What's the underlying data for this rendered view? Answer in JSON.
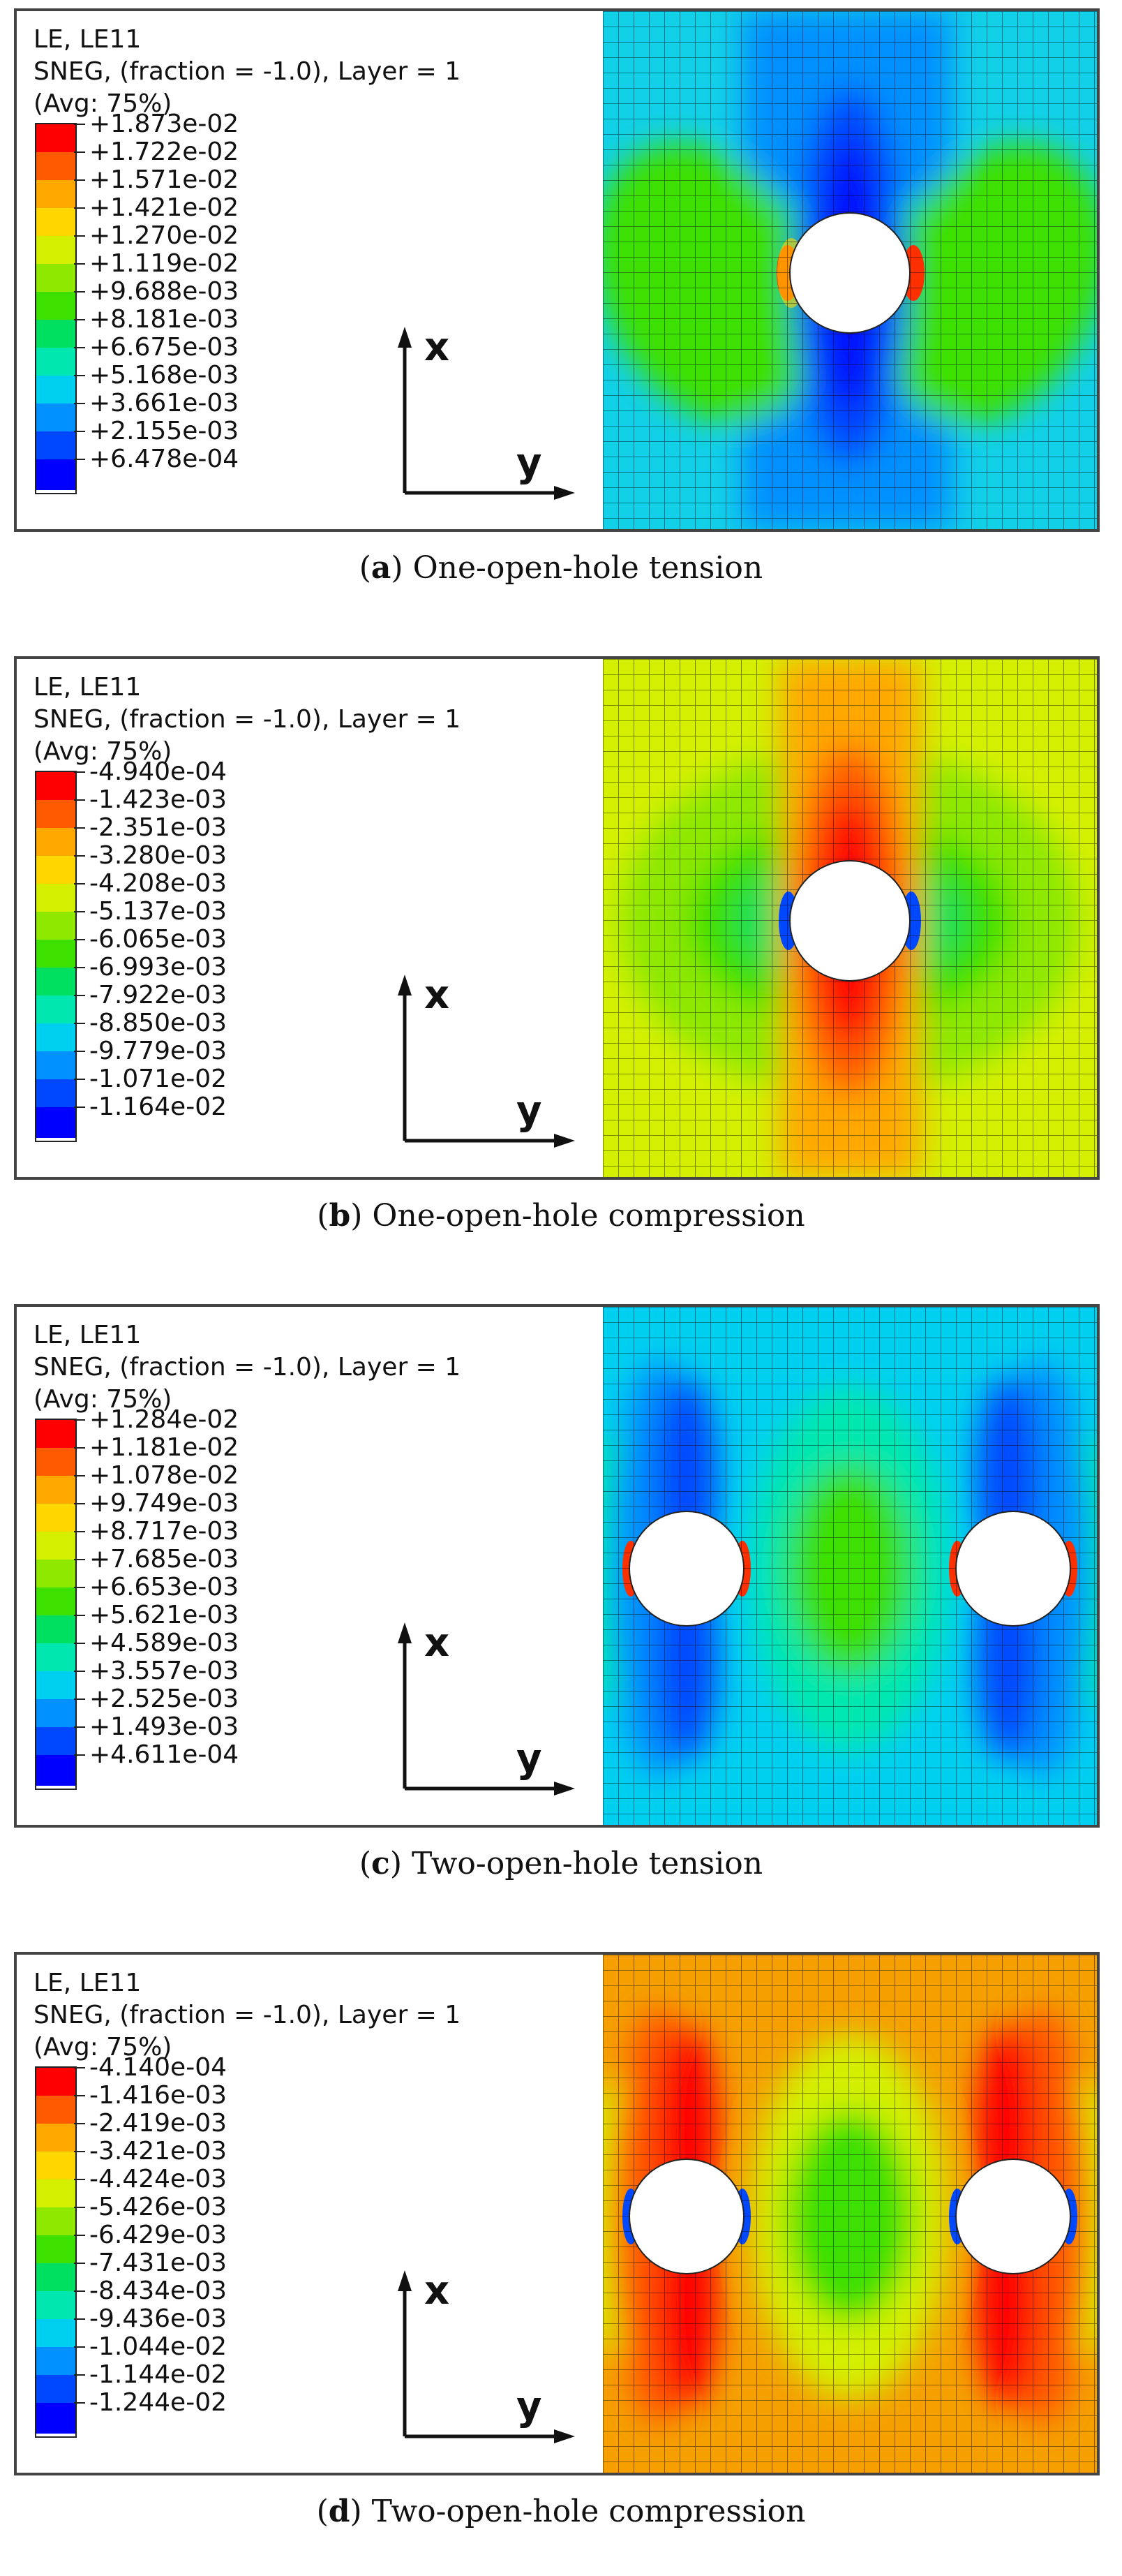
{
  "legend_header": {
    "line1": "LE, LE11",
    "line2": "SNEG, (fraction = -1.0), Layer = 1",
    "line3": "(Avg: 75%)"
  },
  "axes": {
    "x": "x",
    "y": "y"
  },
  "colors": [
    "#ff0000",
    "#ff5a00",
    "#ffa800",
    "#ffd700",
    "#d4f000",
    "#8ee800",
    "#3ee000",
    "#00e060",
    "#00e8b0",
    "#00d0f0",
    "#0090ff",
    "#0048ff",
    "#0000ff"
  ],
  "panels": [
    {
      "letter": "a",
      "caption": "One-open-hole tension",
      "legend_values": [
        "+1.873e-02",
        "+1.722e-02",
        "+1.571e-02",
        "+1.421e-02",
        "+1.270e-02",
        "+1.119e-02",
        "+9.688e-03",
        "+8.181e-03",
        "+6.675e-03",
        "+5.168e-03",
        "+3.661e-03",
        "+2.155e-03",
        "+6.478e-04"
      ]
    },
    {
      "letter": "b",
      "caption": "One-open-hole compression",
      "legend_values": [
        "-4.940e-04",
        "-1.423e-03",
        "-2.351e-03",
        "-3.280e-03",
        "-4.208e-03",
        "-5.137e-03",
        "-6.065e-03",
        "-6.993e-03",
        "-7.922e-03",
        "-8.850e-03",
        "-9.779e-03",
        "-1.071e-02",
        "-1.164e-02"
      ]
    },
    {
      "letter": "c",
      "caption": "Two-open-hole tension",
      "legend_values": [
        "+1.284e-02",
        "+1.181e-02",
        "+1.078e-02",
        "+9.749e-03",
        "+8.717e-03",
        "+7.685e-03",
        "+6.653e-03",
        "+5.621e-03",
        "+4.589e-03",
        "+3.557e-03",
        "+2.525e-03",
        "+1.493e-03",
        "+4.611e-04"
      ]
    },
    {
      "letter": "d",
      "caption": "Two-open-hole compression",
      "legend_values": [
        "-4.140e-04",
        "-1.416e-03",
        "-2.419e-03",
        "-3.421e-03",
        "-4.424e-03",
        "-5.426e-03",
        "-6.429e-03",
        "-7.431e-03",
        "-8.434e-03",
        "-9.436e-03",
        "-1.044e-02",
        "-1.144e-02",
        "-1.244e-02"
      ]
    }
  ]
}
